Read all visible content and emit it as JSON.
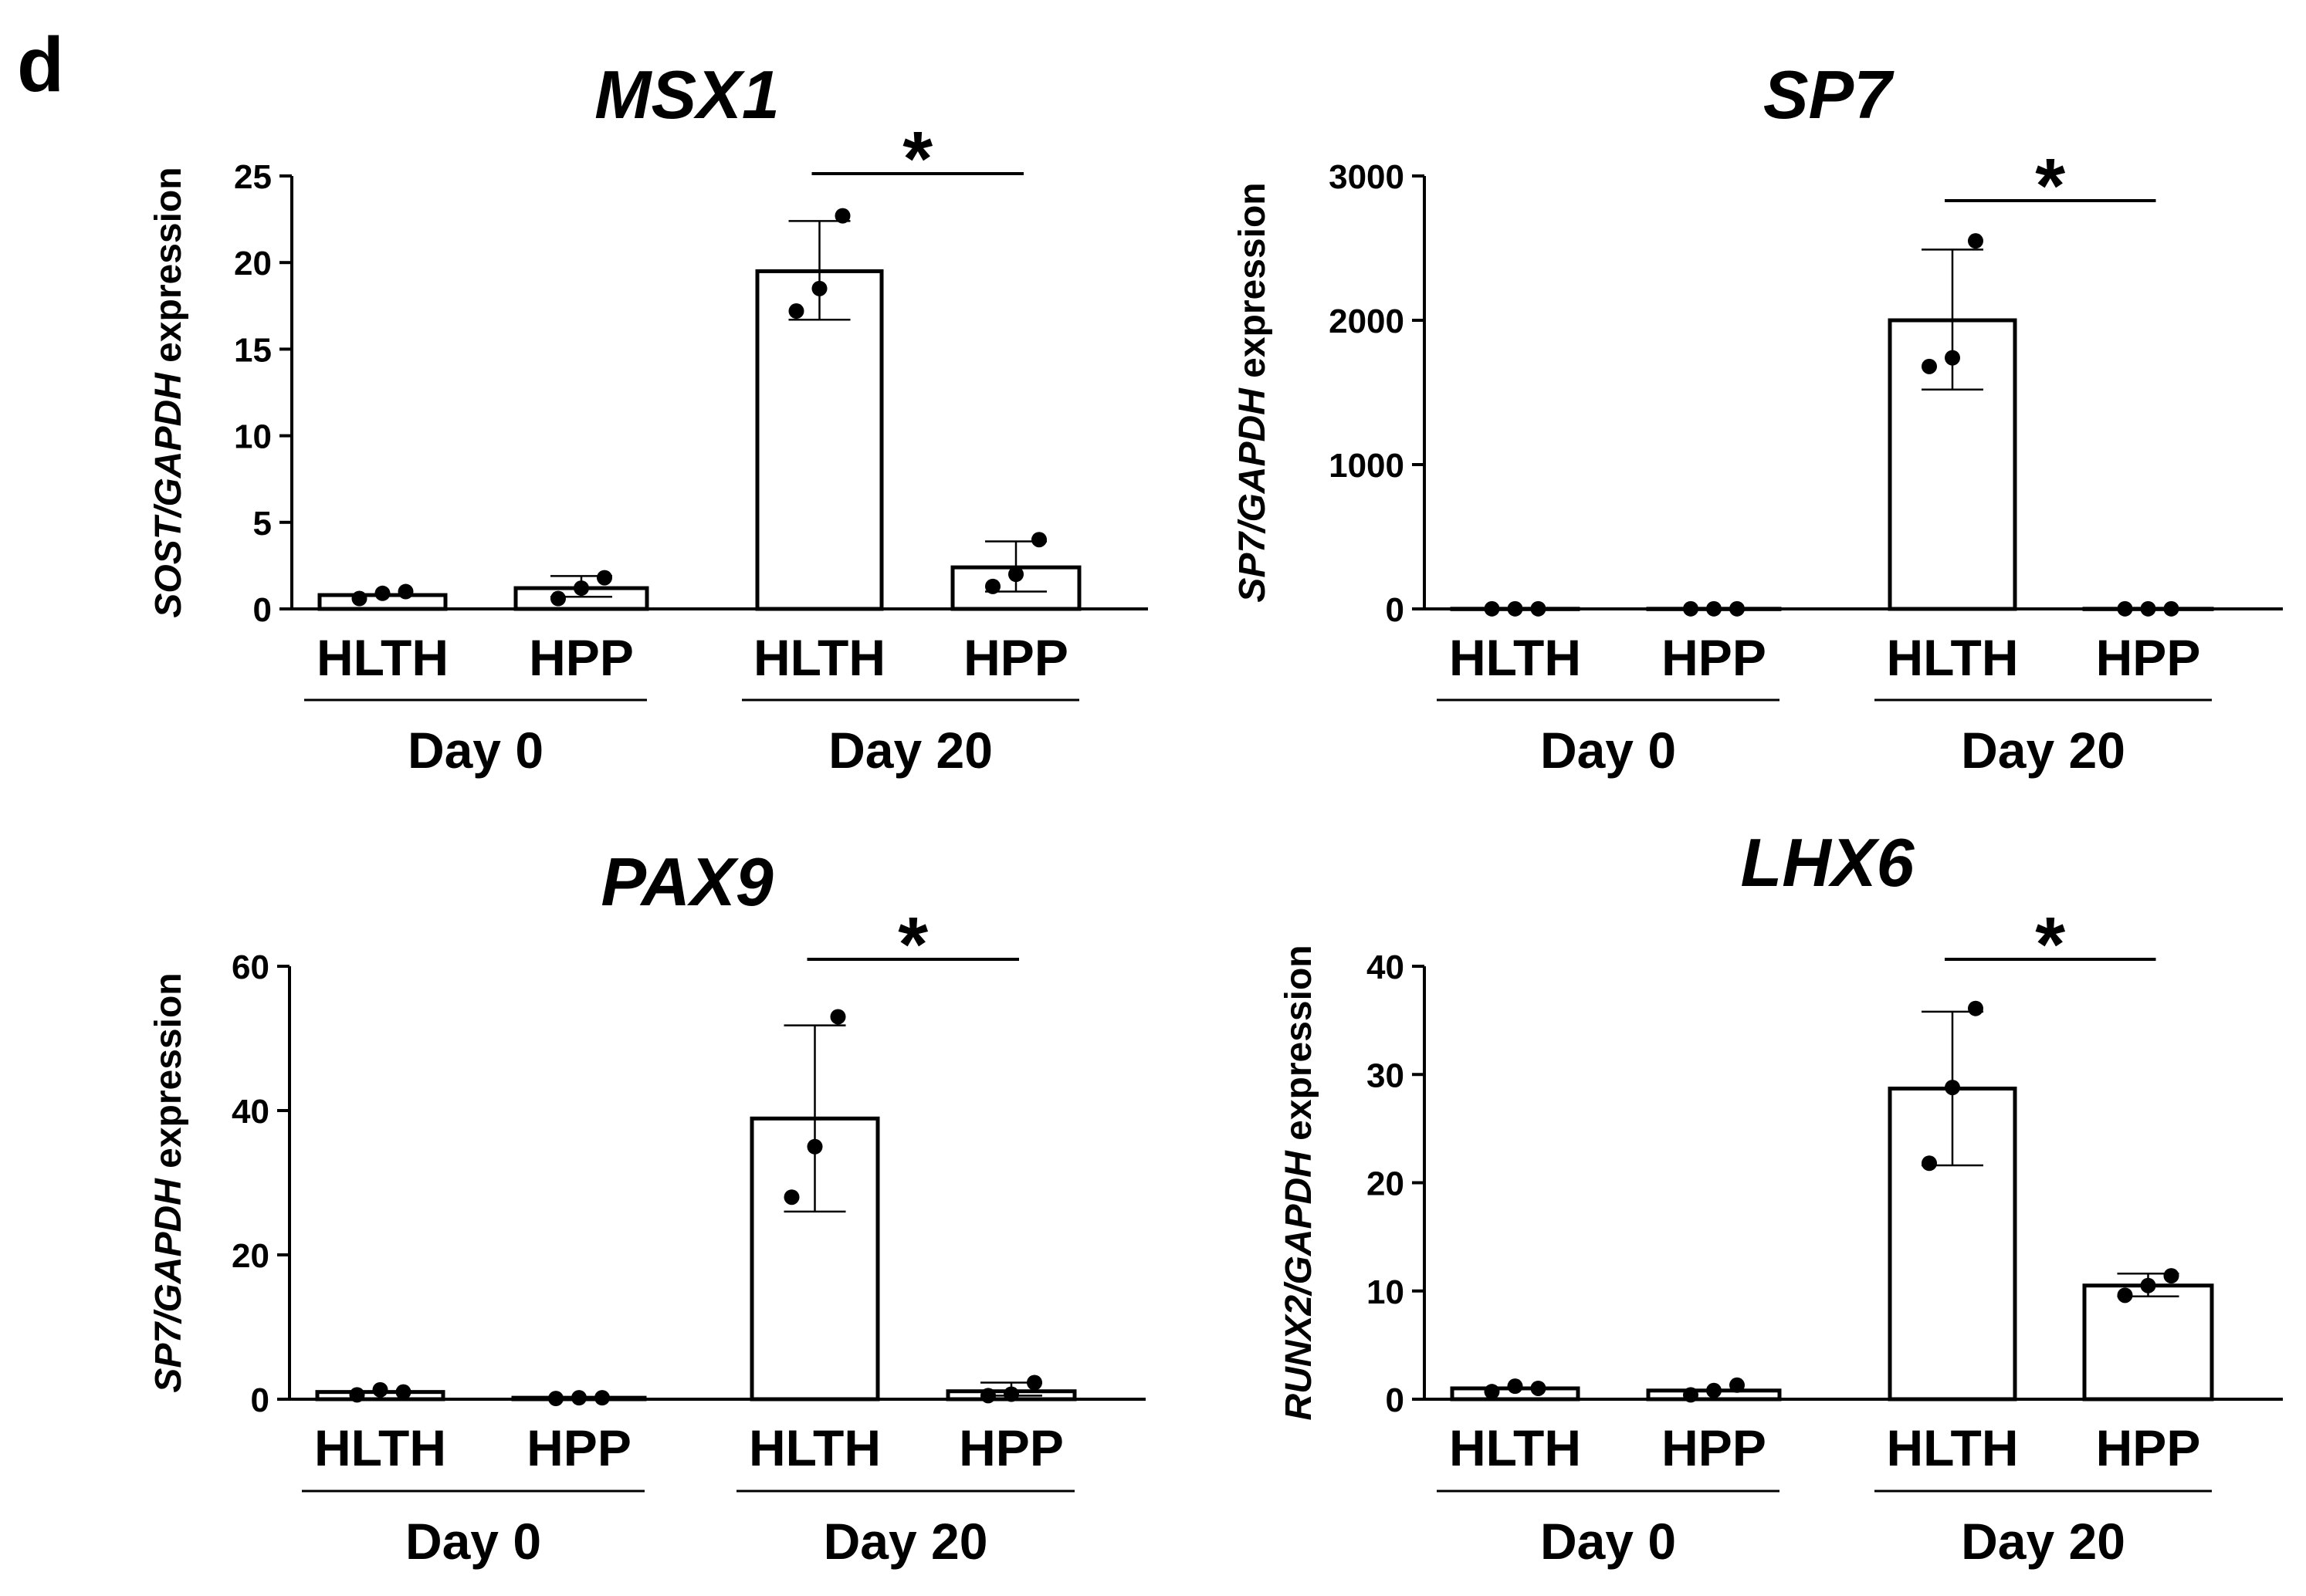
{
  "figure": {
    "panel_letter": "d"
  },
  "chart_data": [
    {
      "type": "bar",
      "title": "MSX1",
      "ylabel_gene": "SOST/GAPDH",
      "ylabel_suffix": " expression",
      "ylim": [
        0,
        25
      ],
      "yticks": [
        0,
        5,
        10,
        15,
        20,
        25
      ],
      "tick_labels": [
        "0",
        "5",
        "10",
        "15",
        "20",
        "25"
      ],
      "categories": [
        "HLTH",
        "HPP",
        "HLTH",
        "HPP"
      ],
      "groups": [
        {
          "label": "Day 0",
          "bars": [
            0,
            1
          ]
        },
        {
          "label": "Day 20",
          "bars": [
            2,
            3
          ]
        }
      ],
      "values": [
        0.8,
        1.2,
        19.5,
        2.4
      ],
      "error": [
        [
          0.8,
          0.8
        ],
        [
          0.7,
          1.9
        ],
        [
          16.7,
          22.4
        ],
        [
          1.0,
          3.9
        ]
      ],
      "points": [
        [
          0.6,
          0.9,
          1.0
        ],
        [
          0.6,
          1.2,
          1.8
        ],
        [
          17.2,
          18.5,
          22.7
        ],
        [
          1.3,
          2.0,
          4.0
        ]
      ],
      "significance": {
        "label": "*",
        "between": [
          2,
          3
        ]
      }
    },
    {
      "type": "bar",
      "title": "SP7",
      "ylabel_gene": "SP7/GAPDH",
      "ylabel_suffix": " expression",
      "ylim": [
        0,
        3000
      ],
      "yticks": [
        0,
        1000,
        2000,
        3000
      ],
      "tick_labels": [
        "0",
        "1000",
        "2000",
        "3000"
      ],
      "categories": [
        "HLTH",
        "HPP",
        "HLTH",
        "HPP"
      ],
      "groups": [
        {
          "label": "Day 0",
          "bars": [
            0,
            1
          ]
        },
        {
          "label": "Day 20",
          "bars": [
            2,
            3
          ]
        }
      ],
      "values": [
        1,
        1,
        2000,
        1
      ],
      "error": [
        [
          1,
          1
        ],
        [
          1,
          1
        ],
        [
          1520,
          2490
        ],
        [
          1,
          1
        ]
      ],
      "points": [
        [
          1,
          1,
          1
        ],
        [
          1,
          1,
          1
        ],
        [
          1680,
          1740,
          2550
        ],
        [
          1,
          1,
          1
        ]
      ],
      "significance": {
        "label": "*",
        "between": [
          2,
          3
        ]
      }
    },
    {
      "type": "bar",
      "title": "PAX9",
      "ylabel_gene": "SP7/GAPDH",
      "ylabel_suffix": " expression",
      "ylim": [
        0,
        60
      ],
      "yticks": [
        0,
        20,
        40,
        60
      ],
      "tick_labels": [
        "0",
        "20",
        "40",
        "60"
      ],
      "categories": [
        "HLTH",
        "HPP",
        "HLTH",
        "HPP"
      ],
      "groups": [
        {
          "label": "Day 0",
          "bars": [
            0,
            1
          ]
        },
        {
          "label": "Day 20",
          "bars": [
            2,
            3
          ]
        }
      ],
      "values": [
        1.0,
        0.2,
        38.9,
        1.1
      ],
      "error": [
        [
          1.0,
          1.0
        ],
        [
          0.2,
          0.2
        ],
        [
          26.0,
          51.8
        ],
        [
          0.5,
          2.3
        ]
      ],
      "points": [
        [
          0.6,
          1.3,
          1.0
        ],
        [
          0.1,
          0.2,
          0.2
        ],
        [
          28.0,
          35.0,
          53.0
        ],
        [
          0.5,
          0.7,
          2.3
        ]
      ],
      "significance": {
        "label": "*",
        "between": [
          2,
          3
        ]
      }
    },
    {
      "type": "bar",
      "title": "LHX6",
      "ylabel_gene": "RUNX2/GAPDH",
      "ylabel_suffix": " expression",
      "ylim": [
        0,
        40
      ],
      "yticks": [
        0,
        10,
        20,
        30,
        40
      ],
      "tick_labels": [
        "0",
        "10",
        "20",
        "30",
        "40"
      ],
      "categories": [
        "HLTH",
        "HPP",
        "HLTH",
        "HPP"
      ],
      "groups": [
        {
          "label": "Day 0",
          "bars": [
            0,
            1
          ]
        },
        {
          "label": "Day 20",
          "bars": [
            2,
            3
          ]
        }
      ],
      "values": [
        1.0,
        0.8,
        28.7,
        10.5
      ],
      "error": [
        [
          1.0,
          1.0
        ],
        [
          0.8,
          0.8
        ],
        [
          21.6,
          35.8
        ],
        [
          9.5,
          11.6
        ]
      ],
      "points": [
        [
          0.7,
          1.2,
          1.0
        ],
        [
          0.4,
          0.8,
          1.3
        ],
        [
          21.8,
          28.8,
          36.1
        ],
        [
          9.6,
          10.5,
          11.4
        ]
      ],
      "significance": {
        "label": "*",
        "between": [
          2,
          3
        ]
      }
    }
  ]
}
